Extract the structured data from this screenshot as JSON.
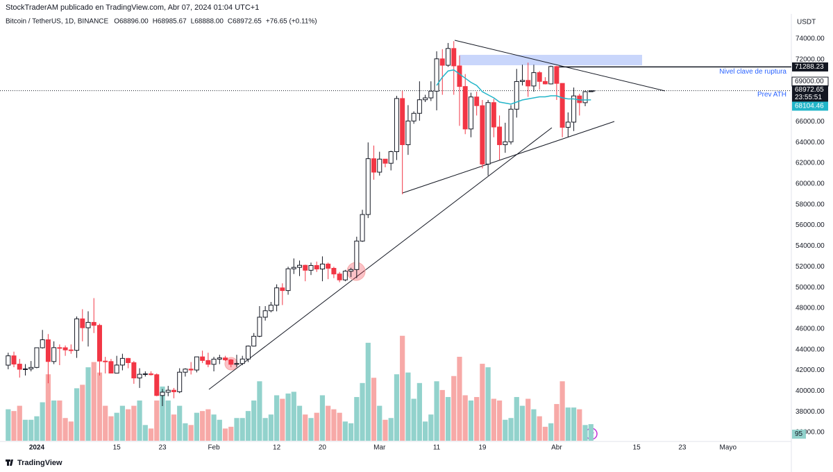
{
  "chart_data": {
    "type": "candlestick",
    "header": "StockTraderAM publicado en TradingView.com, Abr 07, 2024 01:04 UTC+1",
    "title": "Bitcoin / TetherUS, 1D, BINANCE",
    "ohlc_labels": [
      "O68896.00",
      "H68985.67",
      "L68888.00",
      "C68972.65"
    ],
    "change_label": "+76.65 (+0.11%)",
    "currency": "USDT",
    "brand": "TradingView",
    "categories": [
      null,
      null,
      null,
      null,
      null,
      "2024",
      null,
      null,
      null,
      null,
      null,
      null,
      null,
      null,
      null,
      null,
      null,
      null,
      null,
      "15",
      null,
      null,
      null,
      null,
      null,
      null,
      null,
      "23",
      null,
      null,
      null,
      null,
      null,
      null,
      null,
      null,
      "Feb",
      null,
      null,
      null,
      null,
      null,
      null,
      null,
      null,
      null,
      null,
      "12",
      null,
      null,
      null,
      null,
      null,
      null,
      null,
      "20",
      null,
      null,
      null,
      null,
      null,
      null,
      null,
      null,
      null,
      "Mar",
      null,
      null,
      null,
      null,
      null,
      null,
      null,
      null,
      null,
      "11",
      null,
      null,
      null,
      null,
      null,
      null,
      null,
      "19",
      null,
      null,
      null,
      null,
      null,
      null,
      null,
      null,
      null,
      null,
      null,
      null,
      "Abr",
      null,
      null,
      null,
      null,
      null,
      null,
      null,
      null,
      null,
      null,
      null,
      null,
      null,
      "15",
      null,
      null,
      null,
      null,
      null,
      null,
      null,
      "23",
      null,
      null,
      null,
      null,
      null,
      null,
      null,
      "Mayo"
    ],
    "open": [
      42500,
      43400,
      42600,
      42100,
      42140,
      42280,
      44180,
      44950,
      42850,
      44190,
      44180,
      43970,
      43930,
      46970,
      46110,
      46630,
      46340,
      42890,
      42850,
      41730,
      42510,
      43150,
      42740,
      41260,
      41620,
      41660,
      41580,
      39570,
      39890,
      40080,
      39930,
      41820,
      42120,
      42030,
      43300,
      42950,
      42580,
      43080,
      43200,
      43010,
      42580,
      42660,
      43090,
      44340,
      45290,
      47130,
      47750,
      48290,
      49960,
      49700,
      51800,
      51940,
      52140,
      51660,
      52120,
      51780,
      52260,
      51850,
      51300,
      50730,
      51570,
      51730,
      54480,
      57040,
      62430,
      61130,
      62390,
      61990,
      63110,
      68240,
      63780,
      66070,
      66810,
      68120,
      68300,
      68950,
      72070,
      71450,
      73070,
      71390,
      69400,
      65300,
      68390,
      67550,
      61910,
      67850,
      65490,
      63780,
      64060,
      67210,
      69880,
      69990,
      69450,
      70740,
      69890,
      69650,
      71330,
      69700,
      65460,
      65960,
      68490,
      67840,
      68896,
      null,
      null,
      null,
      null,
      null,
      null,
      null,
      null,
      null,
      null,
      null,
      null,
      null,
      null,
      null,
      null,
      null,
      null,
      null,
      null,
      null,
      null,
      null,
      null
    ],
    "high": [
      43700,
      43800,
      43100,
      42600,
      42900,
      44200,
      45900,
      45500,
      44800,
      44500,
      44400,
      44500,
      47200,
      47900,
      47700,
      48970,
      46500,
      43300,
      43100,
      43400,
      43600,
      43200,
      42900,
      42200,
      41900,
      41900,
      41700,
      40200,
      40500,
      40300,
      42200,
      42200,
      42800,
      43300,
      43900,
      43700,
      43300,
      43500,
      43400,
      43100,
      43500,
      43400,
      44400,
      45600,
      48200,
      48200,
      48600,
      50300,
      50400,
      52000,
      52800,
      52600,
      52200,
      52400,
      52500,
      53000,
      52400,
      52000,
      51500,
      51700,
      51900,
      54900,
      57500,
      64000,
      63700,
      63100,
      62400,
      63200,
      68500,
      69000,
      67600,
      67000,
      69900,
      68600,
      69900,
      72800,
      73000,
      73600,
      73780,
      72400,
      70600,
      68800,
      68900,
      68100,
      68100,
      68200,
      66600,
      65900,
      67600,
      71100,
      71500,
      71700,
      71500,
      70900,
      70300,
      71400,
      71400,
      69700,
      66900,
      69300,
      68700,
      69000,
      68985.67,
      null,
      null,
      null,
      null,
      null,
      null,
      null,
      null,
      null,
      null,
      null,
      null,
      null,
      null,
      null,
      null,
      null,
      null,
      null,
      null,
      null,
      null,
      null,
      null
    ],
    "low": [
      42100,
      42300,
      41300,
      41500,
      41900,
      42200,
      44100,
      40750,
      42600,
      42500,
      43400,
      43600,
      43200,
      44800,
      44300,
      45600,
      41500,
      41700,
      41700,
      41700,
      42000,
      42200,
      40700,
      40300,
      41400,
      41500,
      39500,
      38550,
      39500,
      39300,
      39800,
      41400,
      41600,
      41800,
      42700,
      42300,
      41900,
      42600,
      42900,
      42300,
      42300,
      42500,
      42800,
      44300,
      45200,
      46800,
      47600,
      47700,
      48300,
      49300,
      51300,
      51100,
      50600,
      51200,
      51500,
      50600,
      50800,
      50900,
      50500,
      50600,
      51000,
      50900,
      54400,
      56700,
      60400,
      60800,
      61600,
      61300,
      62300,
      59000,
      62800,
      65800,
      66100,
      67900,
      68000,
      67100,
      68600,
      71300,
      68600,
      65600,
      64800,
      64500,
      66600,
      61500,
      60800,
      64500,
      62300,
      63000,
      63800,
      66400,
      69500,
      68400,
      68900,
      69100,
      69600,
      69600,
      68100,
      64500,
      64500,
      65100,
      66600,
      67500,
      68888,
      null,
      null,
      null,
      null,
      null,
      null,
      null,
      null,
      null,
      null,
      null,
      null,
      null,
      null,
      null,
      null,
      null,
      null,
      null,
      null,
      null,
      null,
      null,
      null
    ],
    "close": [
      43400,
      42600,
      42100,
      42140,
      42280,
      44180,
      44950,
      42850,
      44190,
      44180,
      43970,
      43930,
      46970,
      46110,
      46630,
      46340,
      42890,
      42850,
      41730,
      42510,
      43150,
      42740,
      41260,
      41620,
      41660,
      41580,
      39570,
      39890,
      40080,
      39930,
      41820,
      42120,
      42030,
      43300,
      42950,
      42580,
      43080,
      43200,
      43010,
      42580,
      42660,
      43090,
      44340,
      45290,
      47130,
      47750,
      48290,
      49960,
      49700,
      51800,
      51940,
      52140,
      51660,
      52120,
      51780,
      52260,
      51850,
      51300,
      50730,
      51570,
      51730,
      54480,
      57040,
      62430,
      61130,
      62390,
      61990,
      63110,
      68240,
      63780,
      66070,
      66810,
      68120,
      68300,
      68950,
      72070,
      71450,
      73070,
      71390,
      69400,
      65300,
      68390,
      67550,
      61910,
      67850,
      65490,
      63780,
      64060,
      67210,
      69880,
      69990,
      69450,
      70740,
      69890,
      69650,
      71330,
      69700,
      65460,
      65960,
      68490,
      67840,
      68900,
      68972.65,
      null,
      null,
      null,
      null,
      null,
      null,
      null,
      null,
      null,
      null,
      null,
      null,
      null,
      null,
      null,
      null,
      null,
      null,
      null,
      null,
      null,
      null,
      null,
      null
    ],
    "volume": [
      180,
      170,
      200,
      120,
      120,
      140,
      220,
      380,
      230,
      230,
      130,
      110,
      300,
      320,
      420,
      450,
      390,
      200,
      140,
      160,
      200,
      180,
      200,
      230,
      90,
      70,
      230,
      310,
      230,
      150,
      200,
      100,
      90,
      160,
      170,
      180,
      150,
      120,
      70,
      80,
      130,
      130,
      170,
      230,
      340,
      130,
      150,
      260,
      240,
      270,
      280,
      200,
      150,
      130,
      160,
      260,
      200,
      180,
      160,
      110,
      100,
      250,
      330,
      560,
      360,
      200,
      120,
      130,
      380,
      600,
      390,
      240,
      330,
      110,
      150,
      340,
      290,
      250,
      370,
      480,
      260,
      230,
      250,
      440,
      420,
      240,
      230,
      120,
      130,
      250,
      200,
      240,
      180,
      140,
      80,
      100,
      210,
      340,
      190,
      190,
      180,
      90,
      95,
      null,
      null,
      null,
      null,
      null,
      null,
      null,
      null,
      null,
      null,
      null,
      null,
      null,
      null,
      null,
      null,
      null,
      null,
      null,
      null,
      null,
      null,
      null,
      null
    ],
    "ma": [
      null,
      null,
      null,
      null,
      null,
      null,
      null,
      null,
      null,
      null,
      null,
      null,
      null,
      null,
      null,
      null,
      null,
      null,
      null,
      null,
      null,
      null,
      null,
      null,
      null,
      null,
      null,
      null,
      null,
      null,
      null,
      null,
      null,
      null,
      null,
      null,
      null,
      null,
      null,
      null,
      null,
      null,
      null,
      null,
      null,
      null,
      null,
      null,
      null,
      null,
      null,
      null,
      null,
      null,
      null,
      null,
      null,
      null,
      null,
      null,
      null,
      null,
      null,
      null,
      null,
      null,
      null,
      null,
      null,
      null,
      null,
      null,
      null,
      null,
      null,
      69500,
      70300,
      70900,
      71000,
      70600,
      70200,
      69800,
      69500,
      68900,
      68600,
      68300,
      67900,
      67800,
      67700,
      67900,
      68100,
      68200,
      68300,
      68400,
      68400,
      68500,
      68500,
      68300,
      68200,
      68200,
      68100,
      68100,
      68104.46,
      null,
      null,
      null,
      null,
      null,
      null,
      null,
      null,
      null,
      null,
      null,
      null,
      null,
      null,
      null,
      null,
      null,
      null,
      null,
      null,
      null,
      null,
      null,
      null
    ],
    "up_color": "#ffffff",
    "up_border": "#131722",
    "down_color": "#f23645",
    "volume_up_color": "#92d2cc",
    "volume_down_color": "#f7a9a7",
    "ma_color": "#22b5c9",
    "ylim": [
      35200,
      75740
    ],
    "yticks": [
      {
        "value": 74000,
        "label": "74000.00"
      },
      {
        "value": 72000,
        "label": "72000.00"
      },
      {
        "value": 66000,
        "label": "66000.00"
      },
      {
        "value": 64000,
        "label": "64000.00"
      },
      {
        "value": 62000,
        "label": "62000.00"
      },
      {
        "value": 60000,
        "label": "60000.00"
      },
      {
        "value": 58000,
        "label": "58000.00"
      },
      {
        "value": 56000,
        "label": "56000.00"
      },
      {
        "value": 54000,
        "label": "54000.00"
      },
      {
        "value": 52000,
        "label": "52000.00"
      },
      {
        "value": 50000,
        "label": "50000.00"
      },
      {
        "value": 48000,
        "label": "48000.00"
      },
      {
        "value": 46000,
        "label": "46000.00"
      },
      {
        "value": 44000,
        "label": "44000.00"
      },
      {
        "value": 42000,
        "label": "42000.00"
      },
      {
        "value": 40000,
        "label": "40000.00"
      },
      {
        "value": 38000,
        "label": "38000.00"
      },
      {
        "value": 36000,
        "label": "36000.00"
      }
    ],
    "y2lim": [
      0,
      2400
    ],
    "key_level": {
      "value": 71288.23,
      "label": "71288.23",
      "text": "Nivel clave de ruptura"
    },
    "prev_ath": {
      "value": 69000,
      "label": "69000.00",
      "text": "Prev ATH"
    },
    "last_price": {
      "value": 68972.65,
      "label": "68972.65",
      "countdown": "23:55:51"
    },
    "ma_label": {
      "value": 68104.46,
      "label": "68104.46"
    },
    "volume_label": {
      "value": 95,
      "label": "95"
    }
  }
}
